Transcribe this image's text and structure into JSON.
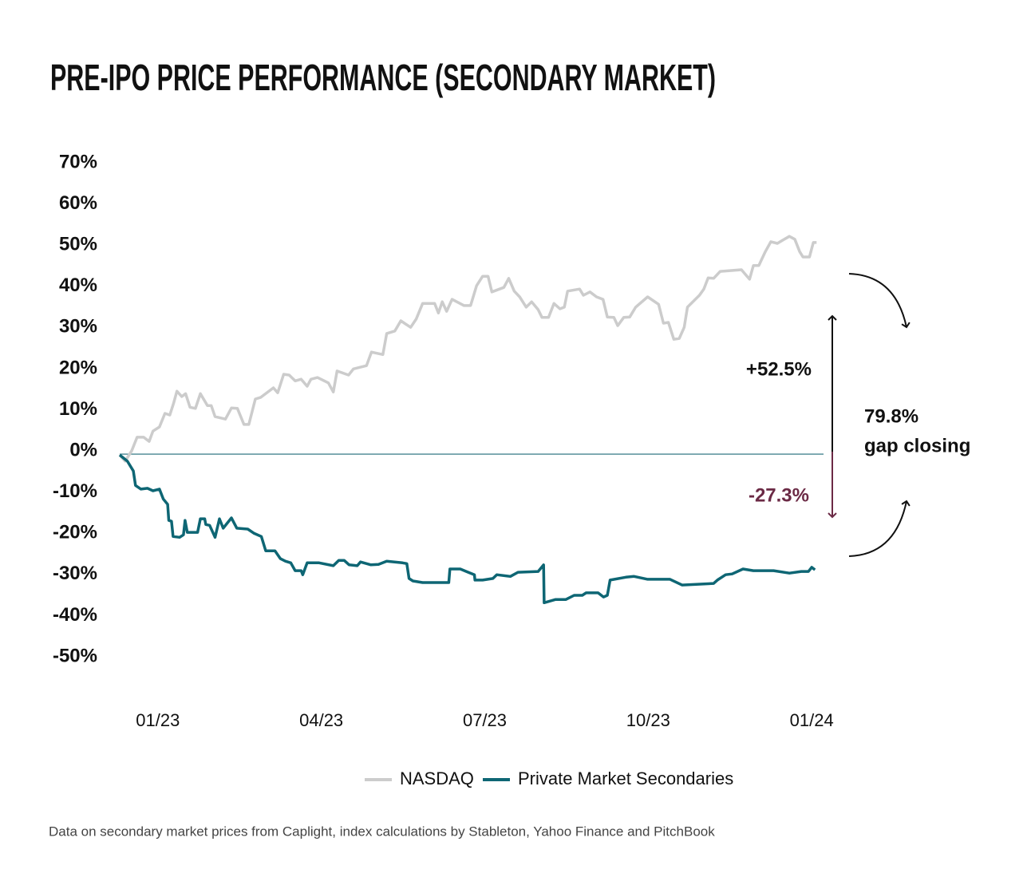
{
  "chart_data": {
    "type": "line",
    "title": "PRE-IPO PRICE PERFORMANCE (SECONDARY MARKET)",
    "source": "Data on secondary market prices from Caplight, index calculations by Stableton, Yahoo Finance and PitchBook",
    "ylim": [
      -50,
      70
    ],
    "yticks": [
      {
        "value": 70,
        "label": "70%"
      },
      {
        "value": 60,
        "label": "60%"
      },
      {
        "value": 50,
        "label": "50%"
      },
      {
        "value": 40,
        "label": "40%"
      },
      {
        "value": 30,
        "label": "30%"
      },
      {
        "value": 20,
        "label": "20%"
      },
      {
        "value": 10,
        "label": "10%"
      },
      {
        "value": 0,
        "label": "0%"
      },
      {
        "value": -10,
        "label": "-10%"
      },
      {
        "value": -20,
        "label": "-20%"
      },
      {
        "value": -30,
        "label": "-30%"
      },
      {
        "value": -40,
        "label": "-40%"
      },
      {
        "value": -50,
        "label": "-50%"
      }
    ],
    "xlim": [
      -0.7,
      12.1
    ],
    "xticks": [
      {
        "value": 0,
        "label": "01/23"
      },
      {
        "value": 3,
        "label": "04/23"
      },
      {
        "value": 6,
        "label": "07/23"
      },
      {
        "value": 9,
        "label": "10/23"
      },
      {
        "value": 12,
        "label": "01/24"
      }
    ],
    "zero_line": true,
    "zero_line_color": "#1f6b78",
    "series": [
      {
        "name": "NASDAQ",
        "color": "#cccccc",
        "x": [
          -0.7,
          -0.6,
          -0.48,
          -0.38,
          -0.26,
          -0.16,
          -0.09,
          0.03,
          0.13,
          0.22,
          0.29,
          0.35,
          0.44,
          0.51,
          0.59,
          0.69,
          0.78,
          0.91,
          0.98,
          1.05,
          1.24,
          1.35,
          1.46,
          1.58,
          1.67,
          1.79,
          1.89,
          2.12,
          2.2,
          2.31,
          2.41,
          2.52,
          2.63,
          2.74,
          2.81,
          2.93,
          3.13,
          3.22,
          3.29,
          3.5,
          3.59,
          3.83,
          3.92,
          4.13,
          4.2,
          4.35,
          4.46,
          4.64,
          4.74,
          4.86,
          5.08,
          5.15,
          5.22,
          5.3,
          5.4,
          5.62,
          5.74,
          5.85,
          5.96,
          6.06,
          6.13,
          6.35,
          6.44,
          6.54,
          6.64,
          6.76,
          6.86,
          6.98,
          7.05,
          7.17,
          7.27,
          7.38,
          7.46,
          7.52,
          7.74,
          7.81,
          7.93,
          8.05,
          8.17,
          8.25,
          8.37,
          8.44,
          8.55,
          8.66,
          8.77,
          8.99,
          9.19,
          9.28,
          9.37,
          9.47,
          9.57,
          9.66,
          9.72,
          9.94,
          10.02,
          10.1,
          10.2,
          10.32,
          10.71,
          10.86,
          10.93,
          11.03,
          11.15,
          11.25,
          11.37,
          11.47,
          11.59,
          11.69,
          11.78,
          11.84,
          11.96,
          12.03,
          12.09
        ],
        "values": [
          -0.2,
          -1.7,
          0.8,
          4.1,
          4.1,
          3.1,
          5.6,
          6.6,
          9.9,
          9.5,
          12.4,
          15.3,
          14.0,
          14.7,
          11.4,
          11.1,
          14.7,
          11.8,
          11.8,
          9.1,
          8.5,
          11.2,
          11.1,
          7.2,
          7.2,
          13.4,
          13.8,
          16.1,
          14.9,
          19.4,
          19.2,
          17.8,
          18.2,
          16.5,
          18.2,
          18.6,
          17.3,
          15.1,
          20.2,
          19.2,
          20.7,
          21.5,
          24.8,
          24.2,
          29.3,
          29.9,
          32.4,
          30.8,
          32.8,
          36.6,
          36.6,
          34.3,
          37.0,
          34.7,
          37.6,
          36.1,
          36.1,
          40.9,
          43.2,
          43.2,
          39.4,
          40.5,
          42.7,
          39.6,
          38.2,
          35.7,
          37.0,
          35.1,
          33.2,
          33.2,
          36.6,
          35.3,
          35.7,
          39.6,
          40.1,
          38.6,
          39.4,
          38.2,
          37.6,
          33.3,
          33.2,
          31.2,
          33.2,
          33.3,
          35.7,
          38.2,
          36.4,
          31.8,
          32.0,
          27.9,
          28.1,
          30.8,
          35.7,
          38.6,
          40.1,
          42.8,
          42.7,
          44.4,
          44.8,
          42.5,
          45.8,
          45.8,
          49.2,
          51.6,
          51.2,
          52.0,
          52.9,
          52.2,
          49.2,
          47.9,
          47.9,
          51.4,
          51.4
        ]
      },
      {
        "name": "Private Market Secondaries",
        "color": "#0e6674",
        "x": [
          -0.7,
          -0.56,
          -0.45,
          -0.41,
          -0.31,
          -0.19,
          -0.09,
          0.03,
          0.1,
          0.18,
          0.2,
          0.25,
          0.28,
          0.4,
          0.47,
          0.5,
          0.54,
          0.73,
          0.78,
          0.86,
          0.88,
          0.95,
          1.05,
          1.13,
          1.2,
          1.35,
          1.45,
          1.65,
          1.76,
          1.9,
          1.98,
          2.15,
          2.25,
          2.34,
          2.44,
          2.52,
          2.63,
          2.66,
          2.74,
          2.96,
          3.22,
          3.32,
          3.42,
          3.51,
          3.66,
          3.72,
          3.91,
          4.05,
          4.2,
          4.49,
          4.57,
          4.61,
          4.68,
          4.86,
          5.34,
          5.36,
          5.55,
          5.66,
          5.81,
          5.82,
          5.96,
          6.15,
          6.22,
          6.47,
          6.61,
          6.98,
          7.08,
          7.09,
          7.3,
          7.49,
          7.64,
          7.79,
          7.86,
          8.08,
          8.18,
          8.25,
          8.3,
          8.59,
          8.74,
          8.99,
          9.4,
          9.62,
          10.2,
          10.27,
          10.42,
          10.54,
          10.74,
          10.93,
          11.3,
          11.59,
          11.81,
          11.94,
          12.0,
          12.06
        ],
        "values": [
          -0.2,
          -1.7,
          -4.1,
          -7.6,
          -8.5,
          -8.3,
          -8.9,
          -8.5,
          -10.9,
          -12.2,
          -16.1,
          -16.3,
          -20.0,
          -20.2,
          -19.6,
          -16.1,
          -19.0,
          -19.0,
          -15.7,
          -15.7,
          -17.1,
          -17.3,
          -20.2,
          -15.7,
          -18.0,
          -15.5,
          -18.0,
          -18.2,
          -19.2,
          -20.0,
          -23.5,
          -23.5,
          -25.4,
          -26.0,
          -26.4,
          -28.3,
          -28.3,
          -29.3,
          -26.4,
          -26.4,
          -27.1,
          -25.8,
          -25.8,
          -26.9,
          -27.1,
          -26.2,
          -26.9,
          -26.8,
          -26.0,
          -26.4,
          -26.6,
          -30.2,
          -30.8,
          -31.2,
          -31.2,
          -27.9,
          -27.9,
          -28.5,
          -29.3,
          -30.6,
          -30.6,
          -30.2,
          -29.3,
          -29.7,
          -28.7,
          -28.5,
          -26.9,
          -36.1,
          -35.3,
          -35.3,
          -34.3,
          -34.3,
          -33.7,
          -33.7,
          -34.7,
          -34.3,
          -30.6,
          -29.9,
          -29.7,
          -30.4,
          -30.4,
          -31.8,
          -31.4,
          -30.6,
          -29.3,
          -29.1,
          -27.9,
          -28.3,
          -28.3,
          -28.9,
          -28.5,
          -28.5,
          -27.5,
          -28.1
        ]
      }
    ],
    "annotations": [
      {
        "text": "+52.5%",
        "color": "#111111"
      },
      {
        "text": "-27.3%",
        "color": "#6b2a45"
      },
      {
        "text": "79.8%",
        "color": "#111111"
      },
      {
        "text": "gap closing",
        "color": "#111111"
      }
    ]
  }
}
